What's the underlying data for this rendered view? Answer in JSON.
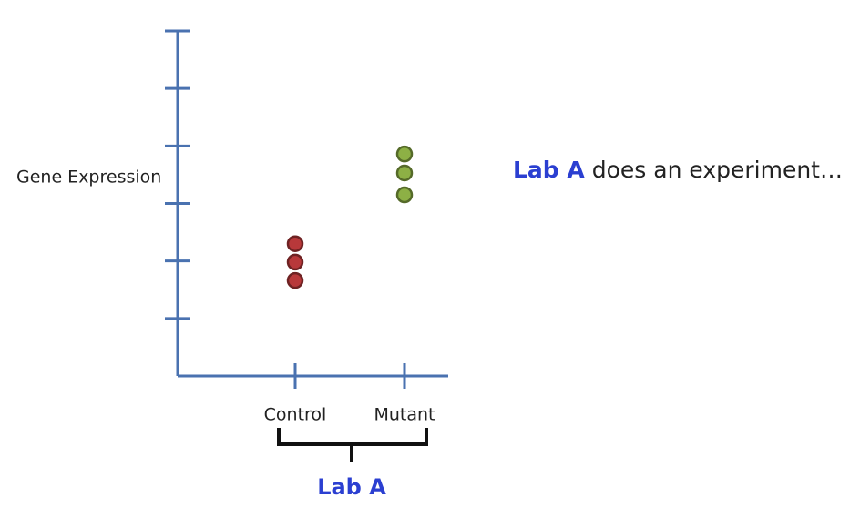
{
  "chart_data": {
    "type": "dot",
    "y_label": "Gene Expression",
    "categories": [
      "Control",
      "Mutant"
    ],
    "values": [
      [
        2.3,
        1.98,
        1.66
      ],
      [
        3.86,
        3.53,
        3.15
      ]
    ],
    "colors": [
      "#b8383a",
      "#8db045"
    ],
    "ylim": [
      0,
      6
    ],
    "yticks": [
      1,
      2,
      3,
      4,
      5,
      6
    ],
    "group_label": "Lab A",
    "annotation": {
      "highlight": "Lab A",
      "text": "does an experiment…"
    }
  }
}
